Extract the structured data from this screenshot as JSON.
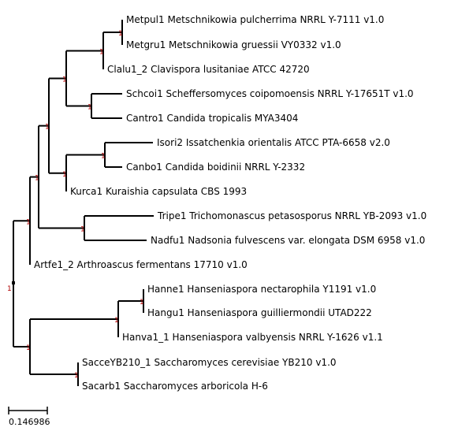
{
  "tree": {
    "root_support": "1",
    "scale_label": "0.146986",
    "colors": {
      "branch": "#000000",
      "support": "#b00000",
      "text": "#000000"
    },
    "taxa": [
      {
        "id": "metpul",
        "label": "Metpul1 Metschnikowia pulcherrima NRRL Y-7111 v1.0"
      },
      {
        "id": "metgru",
        "label": "Metgru1 Metschnikowia gruessii VY0332 v1.0"
      },
      {
        "id": "clalu",
        "label": "Clalu1_2 Clavispora lusitaniae ATCC 42720"
      },
      {
        "id": "schcoi",
        "label": "Schcoi1 Scheffersomyces coipomoensis NRRL Y-17651T v1.0"
      },
      {
        "id": "cantro",
        "label": "Cantro1 Candida tropicalis MYA3404"
      },
      {
        "id": "isori",
        "label": "Isori2 Issatchenkia orientalis ATCC PTA-6658 v2.0"
      },
      {
        "id": "canbo",
        "label": "Canbo1 Candida boidinii NRRL Y-2332"
      },
      {
        "id": "kurca",
        "label": "Kurca1 Kuraishia capsulata CBS 1993"
      },
      {
        "id": "tripe",
        "label": "Tripe1 Trichomonascus petasosporus NRRL YB-2093 v1.0"
      },
      {
        "id": "nadfu",
        "label": "Nadfu1 Nadsonia fulvescens var. elongata DSM 6958 v1.0"
      },
      {
        "id": "artfe",
        "label": "Artfe1_2 Arthroascus fermentans 17710 v1.0"
      },
      {
        "id": "hanne",
        "label": "Hanne1 Hanseniaspora nectarophila Y1191 v1.0"
      },
      {
        "id": "hangu",
        "label": "Hangu1 Hanseniaspora guilliermondii UTAD222"
      },
      {
        "id": "hanva",
        "label": "Hanva1_1 Hanseniaspora valbyensis NRRL Y-1626 v1.1"
      },
      {
        "id": "sacce",
        "label": "SacceYB210_1 Saccharomyces cerevisiae YB210 v1.0"
      },
      {
        "id": "sacarb",
        "label": "Sacarb1 Saccharomyces arboricola H-6"
      }
    ],
    "internal_nodes": [
      {
        "id": "n_met",
        "support": "1"
      },
      {
        "id": "n_cla",
        "support": "1"
      },
      {
        "id": "n_sch",
        "support": "1"
      },
      {
        "id": "n_ctg",
        "support": "1"
      },
      {
        "id": "n_isc",
        "support": "1"
      },
      {
        "id": "n_iscku",
        "support": "1"
      },
      {
        "id": "n_ck",
        "support": "1"
      },
      {
        "id": "n_tn",
        "support": "1"
      },
      {
        "id": "n_ckt",
        "support": "1"
      },
      {
        "id": "n_top",
        "support": "1"
      },
      {
        "id": "n_hng",
        "support": "1"
      },
      {
        "id": "n_han",
        "support": "1"
      },
      {
        "id": "n_sac",
        "support": "1"
      },
      {
        "id": "n_bot",
        "support": "1"
      }
    ]
  }
}
